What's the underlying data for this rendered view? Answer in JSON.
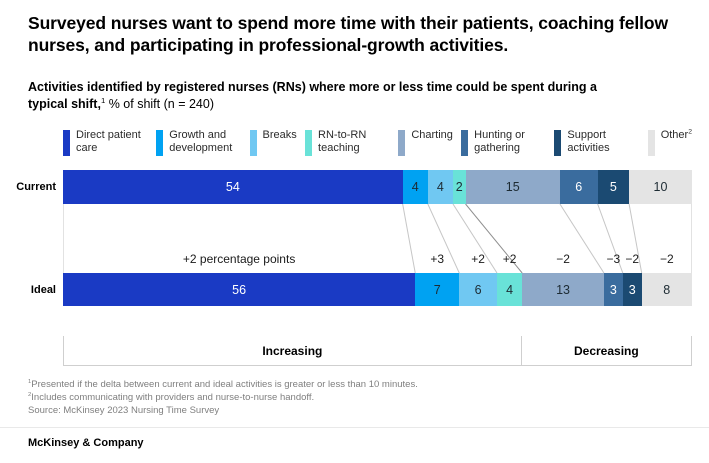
{
  "title": "Surveyed nurses want to spend more time with their patients, coaching fellow nurses, and participating in professional-growth activities.",
  "subtitle": {
    "bold": "Activities identified by registered nurses (RNs) where more or less time could be spent during a typical shift,",
    "sup": "1",
    "rest": " % of shift (n = 240)"
  },
  "chart_data": {
    "type": "bar",
    "stacked": true,
    "orientation": "horizontal",
    "unit": "% of shift",
    "xlim": [
      0,
      100
    ],
    "categories": [
      {
        "name": "Direct patient care",
        "sup": "",
        "color": "#1a3ac4",
        "text_color": "#ffffff"
      },
      {
        "name": "Growth and development",
        "sup": "",
        "color": "#00a2f2",
        "text_color": "#1d2b33"
      },
      {
        "name": "Breaks",
        "sup": "",
        "color": "#70c8f2",
        "text_color": "#1d2b33"
      },
      {
        "name": "RN-to-RN teaching",
        "sup": "",
        "color": "#69e2d8",
        "text_color": "#1d2b33"
      },
      {
        "name": "Charting",
        "sup": "",
        "color": "#8ea9c9",
        "text_color": "#1d2b33"
      },
      {
        "name": "Hunting or gathering",
        "sup": "",
        "color": "#3a6c9e",
        "text_color": "#ffffff"
      },
      {
        "name": "Support activities",
        "sup": "",
        "color": "#1b4a72",
        "text_color": "#ffffff"
      },
      {
        "name": "Other",
        "sup": "2",
        "color": "#e4e4e4",
        "text_color": "#1d2b33"
      }
    ],
    "rows": [
      {
        "label": "Current",
        "values": [
          54,
          4,
          4,
          2,
          15,
          6,
          5,
          10
        ]
      },
      {
        "label": "Ideal",
        "values": [
          56,
          7,
          6,
          4,
          13,
          3,
          3,
          8
        ]
      }
    ],
    "deltas": [
      "+2 percentage points",
      "+3",
      "+2",
      "+2",
      "−2",
      "−3",
      "−2",
      "−2"
    ],
    "divider_after_index": 3,
    "sections": [
      {
        "label": "Increasing",
        "span": 4
      },
      {
        "label": "Decreasing",
        "span": 4
      }
    ],
    "connector_color": "#c6c6c6",
    "divider_color": "#8f8f8f"
  },
  "footnotes": [
    {
      "sup": "1",
      "text": "Presented if the delta between current and ideal activities is greater or less than 10 minutes."
    },
    {
      "sup": "2",
      "text": "Includes communicating with providers and nurse-to-nurse handoff."
    },
    {
      "sup": "",
      "text": "Source: McKinsey 2023 Nursing Time Survey"
    }
  ],
  "footer": "McKinsey & Company"
}
